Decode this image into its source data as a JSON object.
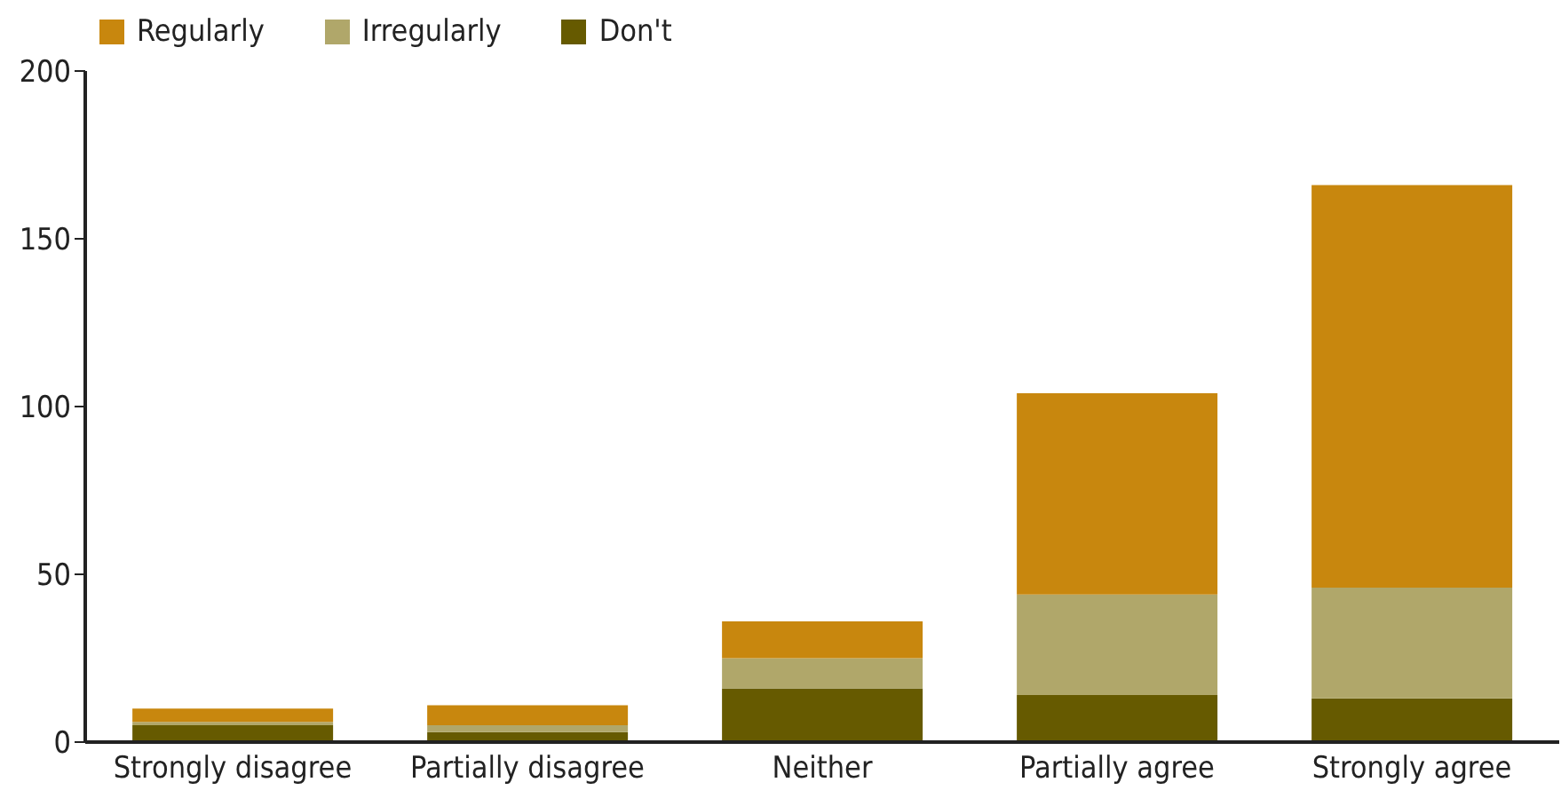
{
  "chart_data": {
    "type": "bar",
    "stacked": true,
    "categories": [
      "Strongly disagree",
      "Partially disagree",
      "Neither",
      "Partially agree",
      "Strongly agree"
    ],
    "series": [
      {
        "name": "Don't",
        "color": "#665a00",
        "values": [
          5,
          3,
          16,
          14,
          13
        ]
      },
      {
        "name": "Irregularly",
        "color": "#b0a76a",
        "values": [
          1,
          2,
          9,
          30,
          33
        ]
      },
      {
        "name": "Regularly",
        "color": "#c8870e",
        "values": [
          4,
          6,
          11,
          60,
          120
        ]
      }
    ],
    "ylim": [
      0,
      200
    ],
    "yticks": [
      0,
      50,
      100,
      150,
      200
    ],
    "legend": "top left"
  }
}
